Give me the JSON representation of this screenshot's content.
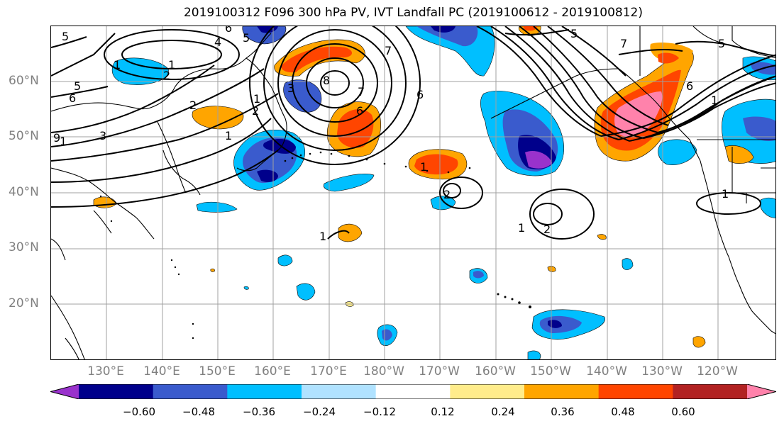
{
  "title": "2019100312 F096 300 hPa PV, IVT Landfall PC (2019100612 - 2019100812)",
  "lat_labels": [
    "60°N",
    "50°N",
    "40°N",
    "30°N",
    "20°N"
  ],
  "lon_labels": [
    "130°E",
    "140°E",
    "150°E",
    "160°E",
    "170°E",
    "180°W",
    "170°W",
    "160°W",
    "150°W",
    "140°W",
    "130°W",
    "120°W"
  ],
  "colorbar": {
    "colors": [
      "#9932cc",
      "#00008b",
      "#3a5bcd",
      "#00bfff",
      "#b0e2ff",
      "#ffffff",
      "#ffec8b",
      "#ffa500",
      "#ff4500",
      "#b22222",
      "#ff82ab"
    ],
    "tick_labels": [
      "−0.60",
      "−0.48",
      "−0.36",
      "−0.24",
      "−0.12",
      "0.12",
      "0.24",
      "0.36",
      "0.48",
      "0.60"
    ]
  },
  "contour_labels": [
    "5",
    "6",
    "5",
    "4",
    "1",
    "2",
    "5",
    "6",
    "2",
    "1",
    "3",
    "1",
    "9",
    "1",
    "1",
    "2",
    "3",
    "6",
    "8",
    "7",
    "6",
    "7",
    "5",
    "7",
    "6",
    "5",
    "1",
    "2",
    "1",
    "1",
    "1",
    "2",
    "1"
  ]
}
